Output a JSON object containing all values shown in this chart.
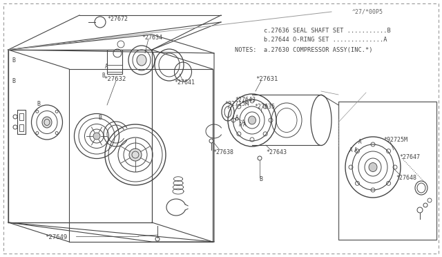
{
  "bg_color": "#ffffff",
  "line_color": "#444444",
  "notes_line1": "NOTES:  a.27630 COMPRESSOR ASSY(INC.*)",
  "notes_line2": "        b.27644 O-RING SET ..............A",
  "notes_line3": "        c.27636 SEAL SHAFT SET...........B",
  "part_code": "^27/*00P5"
}
